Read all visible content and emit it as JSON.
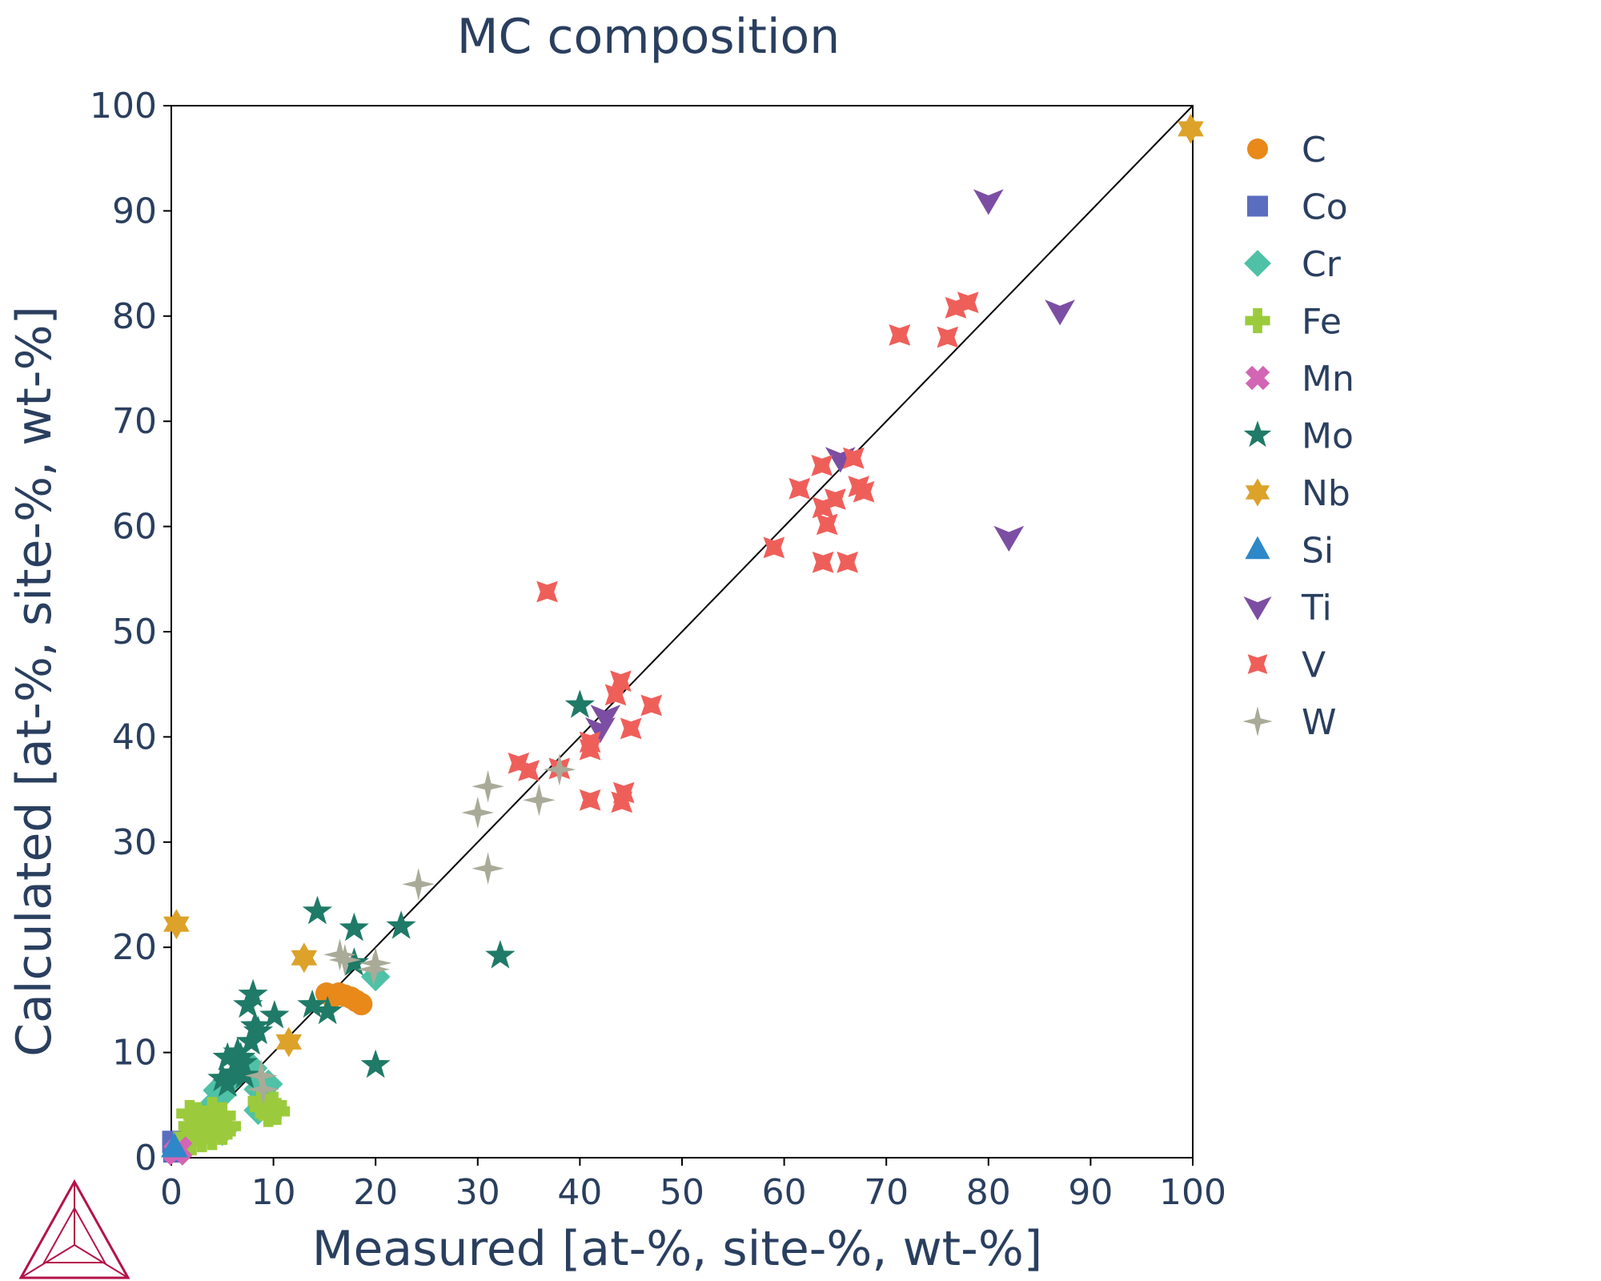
{
  "chart_data": {
    "type": "scatter",
    "title": "MC composition",
    "xlabel": "Measured [at-%, site-%, wt-%]",
    "ylabel": "Calculated [at-%, site-%, wt-%]",
    "xlim": [
      0,
      100
    ],
    "ylim": [
      0,
      100
    ],
    "xticks": [
      "0",
      "10",
      "20",
      "30",
      "40",
      "50",
      "60",
      "70",
      "80",
      "90",
      "100"
    ],
    "yticks": [
      "0",
      "10",
      "20",
      "30",
      "40",
      "50",
      "60",
      "70",
      "80",
      "90",
      "100"
    ],
    "grid": false,
    "legend_position": "right",
    "reference_line": "y = x",
    "text_color": "#2a3f5f",
    "logo": "thermo-calc-triangle-icon",
    "series": [
      {
        "name": "C",
        "marker": "circle",
        "color": "#e8891a",
        "points": [
          [
            15.2,
            15.6
          ],
          [
            15.8,
            15.3
          ],
          [
            16.4,
            15.6
          ],
          [
            17.0,
            15.4
          ],
          [
            17.6,
            15.2
          ],
          [
            18.1,
            14.9
          ],
          [
            18.6,
            14.6
          ]
        ]
      },
      {
        "name": "Co",
        "marker": "square",
        "color": "#5b6dbf",
        "points": [
          [
            0.2,
            1.5
          ],
          [
            0.3,
            0.6
          ]
        ]
      },
      {
        "name": "Cr",
        "marker": "diamond",
        "color": "#4fc1a6",
        "points": [
          [
            20.0,
            17.2
          ],
          [
            4.5,
            6.4
          ],
          [
            5.0,
            6.0
          ],
          [
            5.5,
            7.0
          ],
          [
            8.5,
            6.5
          ],
          [
            9.0,
            5.5
          ],
          [
            9.5,
            7.0
          ],
          [
            8.5,
            4.5
          ],
          [
            5.0,
            2.5
          ],
          [
            4.0,
            5.0
          ],
          [
            8.0,
            8.5
          ]
        ]
      },
      {
        "name": "Fe",
        "marker": "cross",
        "color": "#9bcb3c",
        "points": [
          [
            1.5,
            2.0
          ],
          [
            2.0,
            3.0
          ],
          [
            2.5,
            4.0
          ],
          [
            3.0,
            2.5
          ],
          [
            3.5,
            3.5
          ],
          [
            4.0,
            2.0
          ],
          [
            4.5,
            3.0
          ],
          [
            5.0,
            4.0
          ],
          [
            5.5,
            3.0
          ],
          [
            2.0,
            1.5
          ],
          [
            3.0,
            1.8
          ],
          [
            4.0,
            4.5
          ],
          [
            5.0,
            2.5
          ],
          [
            1.8,
            4.2
          ],
          [
            9.0,
            4.8
          ],
          [
            9.5,
            4.2
          ],
          [
            10.0,
            5.0
          ],
          [
            10.3,
            4.4
          ],
          [
            8.8,
            5.4
          ]
        ]
      },
      {
        "name": "Mn",
        "marker": "x",
        "color": "#d265b4",
        "points": [
          [
            0.5,
            0.5
          ],
          [
            0.8,
            0.8
          ]
        ]
      },
      {
        "name": "Mo",
        "marker": "star",
        "color": "#1f7a67",
        "points": [
          [
            40.0,
            43.0
          ],
          [
            32.2,
            19.2
          ],
          [
            20.0,
            8.8
          ],
          [
            22.5,
            22.0
          ],
          [
            17.9,
            18.5
          ],
          [
            17.9,
            21.8
          ],
          [
            14.3,
            23.4
          ],
          [
            13.8,
            14.5
          ],
          [
            15.3,
            13.9
          ],
          [
            10.1,
            13.5
          ],
          [
            8.0,
            15.5
          ],
          [
            7.5,
            14.5
          ],
          [
            8.2,
            12.5
          ],
          [
            7.8,
            11.0
          ],
          [
            6.5,
            10.0
          ],
          [
            7.0,
            9.0
          ],
          [
            6.0,
            8.0
          ],
          [
            5.0,
            7.5
          ],
          [
            5.5,
            9.5
          ],
          [
            8.5,
            12.0
          ],
          [
            6.8,
            9.5
          ],
          [
            7.2,
            7.8
          ],
          [
            5.5,
            7.0
          ]
        ]
      },
      {
        "name": "Nb",
        "marker": "hexagram",
        "color": "#dca22a",
        "points": [
          [
            0.5,
            22.2
          ],
          [
            13.0,
            19.0
          ],
          [
            11.5,
            11.0
          ],
          [
            99.8,
            97.8
          ]
        ]
      },
      {
        "name": "Si",
        "marker": "triangle-up",
        "color": "#2e87c8",
        "points": [
          [
            0.3,
            1.0
          ]
        ]
      },
      {
        "name": "Ti",
        "marker": "triangle-down",
        "color": "#7b4ea3",
        "points": [
          [
            80.0,
            91.0
          ],
          [
            87.0,
            80.5
          ],
          [
            82.0,
            59.0
          ],
          [
            65.5,
            66.5
          ],
          [
            42.5,
            42.0
          ],
          [
            42.0,
            40.8
          ]
        ]
      },
      {
        "name": "V",
        "marker": "star-square",
        "color": "#ef5f5a",
        "points": [
          [
            36.8,
            53.8
          ],
          [
            78.0,
            81.3
          ],
          [
            76.8,
            80.8
          ],
          [
            71.3,
            78.2
          ],
          [
            76.0,
            78.0
          ],
          [
            66.8,
            66.5
          ],
          [
            63.7,
            65.8
          ],
          [
            61.5,
            63.6
          ],
          [
            65.0,
            62.6
          ],
          [
            63.8,
            61.8
          ],
          [
            67.3,
            63.8
          ],
          [
            67.8,
            63.3
          ],
          [
            64.2,
            60.2
          ],
          [
            59.0,
            58.0
          ],
          [
            63.8,
            56.6
          ],
          [
            66.2,
            56.6
          ],
          [
            44.0,
            45.3
          ],
          [
            43.5,
            44.0
          ],
          [
            47.0,
            43.0
          ],
          [
            45.0,
            40.8
          ],
          [
            41.0,
            39.5
          ],
          [
            41.0,
            38.8
          ],
          [
            34.0,
            37.5
          ],
          [
            35.0,
            36.8
          ],
          [
            38.0,
            37.0
          ],
          [
            41.0,
            34.0
          ],
          [
            44.3,
            34.7
          ],
          [
            44.1,
            33.8
          ]
        ]
      },
      {
        "name": "W",
        "marker": "star-diamond",
        "color": "#a9ab98",
        "points": [
          [
            31.0,
            35.3
          ],
          [
            30.0,
            32.8
          ],
          [
            36.0,
            34.0
          ],
          [
            38.0,
            36.9
          ],
          [
            31.0,
            27.5
          ],
          [
            24.2,
            26.0
          ],
          [
            16.5,
            19.3
          ],
          [
            17.0,
            18.8
          ],
          [
            20.0,
            18.5
          ],
          [
            19.8,
            17.9
          ],
          [
            8.8,
            7.8
          ],
          [
            9.0,
            6.5
          ]
        ]
      }
    ]
  }
}
